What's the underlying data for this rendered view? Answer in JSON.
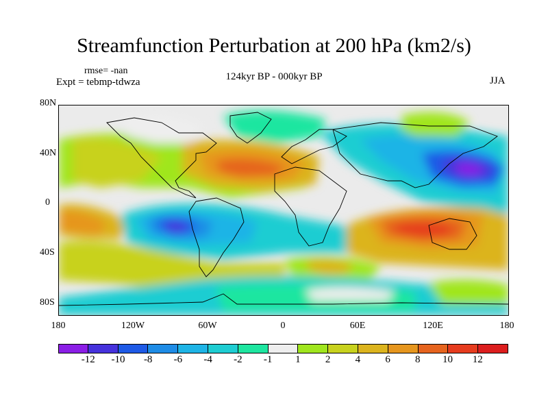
{
  "title": "Streamfunction Perturbation at 200 hPa (km2/s)",
  "rmse": "rmse= -nan",
  "expt": "Expt = tebmp-tdwza",
  "period": "124kyr BP - 000kyr BP",
  "season": "JJA",
  "lat_ticks": [
    "80N",
    "40N",
    "0",
    "40S",
    "80S"
  ],
  "lon_ticks": [
    "180",
    "120W",
    "60W",
    "0",
    "60E",
    "120E",
    "180"
  ],
  "colorbar": {
    "colors": [
      "#8b1ee6",
      "#4632dc",
      "#1e5ae6",
      "#1e8ce6",
      "#1eb4e6",
      "#1ecdd2",
      "#1ee6a0",
      "#eeeeee",
      "#a0e61e",
      "#c8d21e",
      "#dcb41e",
      "#e6961e",
      "#e6641e",
      "#e63c1e",
      "#dc1e1e"
    ],
    "labels": [
      "-12",
      "-10",
      "-8",
      "-6",
      "-4",
      "-2",
      "-1",
      "1",
      "2",
      "4",
      "6",
      "8",
      "10",
      "12"
    ]
  }
}
